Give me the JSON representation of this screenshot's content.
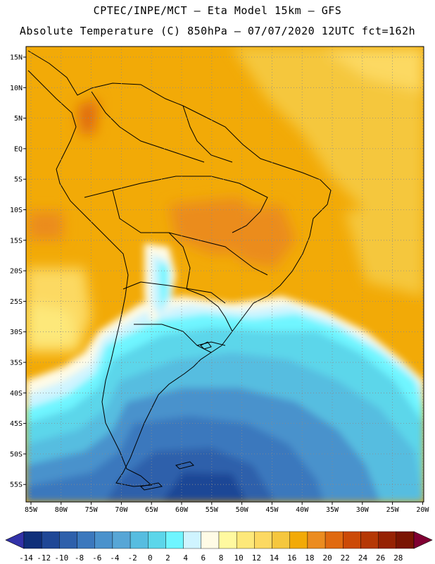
{
  "header": {
    "line1": "CPTEC/INPE/MCT –  Eta Model 15km – GFS",
    "line2": "Absolute Temperature (C) 850hPa – 07/07/2020 12UTC fct=162h"
  },
  "map": {
    "lat_labels": [
      "15N",
      "10N",
      "5N",
      "EQ",
      "5S",
      "10S",
      "15S",
      "20S",
      "25S",
      "30S",
      "35S",
      "40S",
      "45S",
      "50S",
      "55S"
    ],
    "lon_labels": [
      "85W",
      "80W",
      "75W",
      "70W",
      "65W",
      "60W",
      "55W",
      "50W",
      "45W",
      "40W",
      "35W",
      "30W",
      "25W",
      "20W"
    ],
    "grid": "dotted"
  },
  "colorbar": {
    "labels": [
      "-14",
      "-12",
      "-10",
      "-8",
      "-6",
      "-4",
      "-2",
      "0",
      "2",
      "4",
      "6",
      "8",
      "10",
      "12",
      "14",
      "16",
      "18",
      "20",
      "22",
      "24",
      "26",
      "28"
    ],
    "colors": [
      "#0f2f7a",
      "#1f4796",
      "#2e60ab",
      "#3b78bd",
      "#4a92cc",
      "#57a6d6",
      "#57bde0",
      "#5cd6ea",
      "#6ff5ff",
      "#cff4ff",
      "#fffbe6",
      "#fff9a0",
      "#fde87a",
      "#fcd962",
      "#f5c73e",
      "#f2aa07",
      "#eb8c1f",
      "#e06a10",
      "#cc4a06",
      "#b53805",
      "#962203",
      "#7a1402"
    ],
    "under_color": "#3232a8",
    "over_color": "#800032"
  }
}
